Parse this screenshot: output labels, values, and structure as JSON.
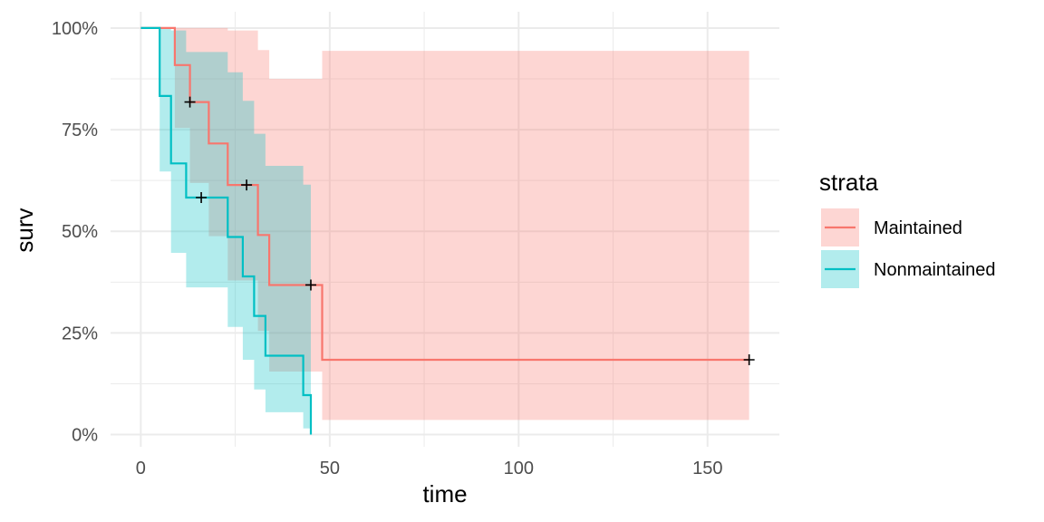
{
  "chart_data": {
    "type": "line",
    "xlabel": "time",
    "ylabel": "surv",
    "xlim": [
      -8,
      169
    ],
    "ylim": [
      -0.03,
      1.04
    ],
    "x_ticks": [
      0,
      50,
      100,
      150
    ],
    "x_tick_labels": [
      "0",
      "50",
      "100",
      "150"
    ],
    "y_ticks": [
      0,
      0.25,
      0.5,
      0.75,
      1
    ],
    "y_tick_labels": [
      "0%",
      "25%",
      "50%",
      "75%",
      "100%"
    ],
    "grid": true,
    "legend": {
      "title": "strata",
      "position": "right"
    },
    "series": [
      {
        "name": "Maintained",
        "color": "#F8766D",
        "fill": "#FBCCC8",
        "steps": [
          {
            "x": 0,
            "surv": 1.0,
            "lower": 1.0,
            "upper": 1.0
          },
          {
            "x": 9,
            "surv": 0.909,
            "lower": 0.754,
            "upper": 1.0
          },
          {
            "x": 13,
            "surv": 0.818,
            "lower": 0.619,
            "upper": 1.0
          },
          {
            "x": 18,
            "surv": 0.716,
            "lower": 0.488,
            "upper": 1.0
          },
          {
            "x": 23,
            "surv": 0.614,
            "lower": 0.379,
            "upper": 0.994
          },
          {
            "x": 31,
            "surv": 0.491,
            "lower": 0.255,
            "upper": 0.946
          },
          {
            "x": 34,
            "surv": 0.368,
            "lower": 0.155,
            "upper": 0.875
          },
          {
            "x": 48,
            "surv": 0.184,
            "lower": 0.036,
            "upper": 0.944
          }
        ],
        "end_x": 161,
        "censored": [
          {
            "x": 13,
            "surv": 0.818
          },
          {
            "x": 28,
            "surv": 0.614
          },
          {
            "x": 45,
            "surv": 0.368
          },
          {
            "x": 161,
            "surv": 0.184
          }
        ]
      },
      {
        "name": "Nonmaintained",
        "color": "#00BFC4",
        "fill": "#B3EAEB",
        "steps": [
          {
            "x": 0,
            "surv": 1.0,
            "lower": 1.0,
            "upper": 1.0
          },
          {
            "x": 5,
            "surv": 0.833,
            "lower": 0.647,
            "upper": 1.0
          },
          {
            "x": 8,
            "surv": 0.667,
            "lower": 0.447,
            "upper": 0.994
          },
          {
            "x": 12,
            "surv": 0.583,
            "lower": 0.362,
            "upper": 0.941
          },
          {
            "x": 23,
            "surv": 0.486,
            "lower": 0.265,
            "upper": 0.891
          },
          {
            "x": 27,
            "surv": 0.389,
            "lower": 0.184,
            "upper": 0.821
          },
          {
            "x": 30,
            "surv": 0.292,
            "lower": 0.111,
            "upper": 0.74
          },
          {
            "x": 33,
            "surv": 0.194,
            "lower": 0.055,
            "upper": 0.661
          },
          {
            "x": 43,
            "surv": 0.097,
            "lower": 0.015,
            "upper": 0.615
          },
          {
            "x": 45,
            "surv": 0.0,
            "lower": 0.0,
            "upper": 0.0
          }
        ],
        "end_x": 45,
        "censored": [
          {
            "x": 16,
            "surv": 0.583
          }
        ]
      }
    ]
  }
}
